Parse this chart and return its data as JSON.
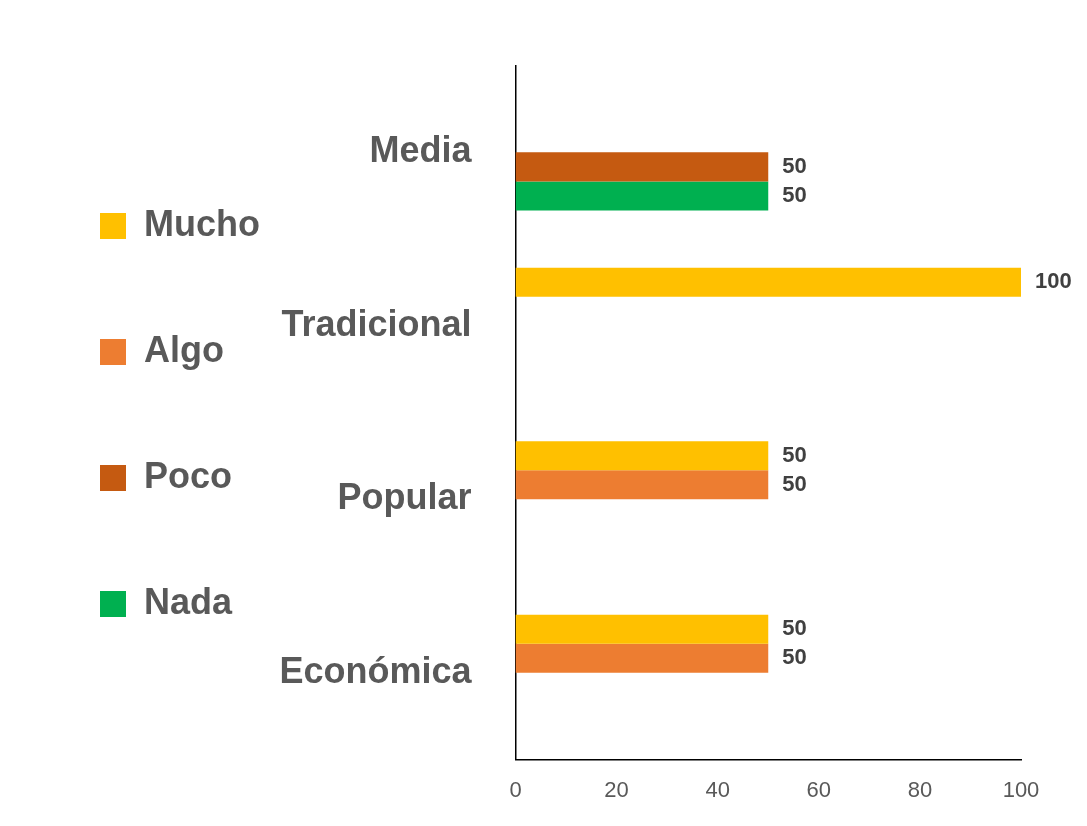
{
  "chart_data": {
    "type": "bar",
    "orientation": "horizontal",
    "categories": [
      "Media",
      "Tradicional",
      "Popular",
      "Económica"
    ],
    "series": [
      {
        "name": "Mucho",
        "color": "#ffc000",
        "values": [
          null,
          100,
          50,
          50
        ]
      },
      {
        "name": "Algo",
        "color": "#ed7d31",
        "values": [
          null,
          null,
          50,
          50
        ]
      },
      {
        "name": "Poco",
        "color": "#c55a11",
        "values": [
          50,
          null,
          null,
          null
        ]
      },
      {
        "name": "Nada",
        "color": "#00b050",
        "values": [
          50,
          null,
          null,
          null
        ]
      }
    ],
    "xlim": [
      0,
      100
    ],
    "xticks": [
      0,
      20,
      40,
      60,
      80,
      100
    ],
    "grid": false,
    "legend": "left",
    "data_labels": true
  }
}
